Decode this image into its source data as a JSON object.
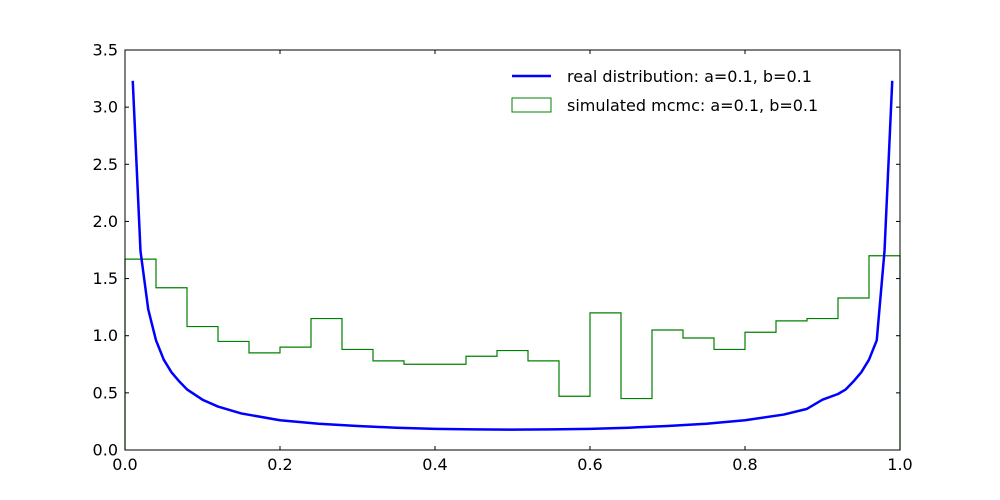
{
  "chart_data": {
    "type": "line",
    "title": "",
    "xlabel": "",
    "ylabel": "",
    "xlim": [
      0.0,
      1.0
    ],
    "ylim": [
      0.0,
      3.5
    ],
    "xticks": [
      "0.0",
      "0.2",
      "0.4",
      "0.6",
      "0.8",
      "1.0"
    ],
    "yticks": [
      "0.0",
      "0.5",
      "1.0",
      "1.5",
      "2.0",
      "2.5",
      "3.0",
      "3.5"
    ],
    "grid": false,
    "legend_position": "top-right",
    "series": [
      {
        "name": "real distribution: a=0.1, b=0.1",
        "kind": "line",
        "color": "#0000ff",
        "x": [
          0.01,
          0.02,
          0.03,
          0.04,
          0.05,
          0.06,
          0.07,
          0.08,
          0.1,
          0.12,
          0.15,
          0.2,
          0.25,
          0.3,
          0.35,
          0.4,
          0.45,
          0.5,
          0.55,
          0.6,
          0.65,
          0.7,
          0.75,
          0.8,
          0.85,
          0.88,
          0.9,
          0.92,
          0.93,
          0.94,
          0.95,
          0.96,
          0.97,
          0.98,
          0.99
        ],
        "y": [
          3.23,
          1.74,
          1.23,
          0.96,
          0.79,
          0.68,
          0.6,
          0.53,
          0.44,
          0.38,
          0.32,
          0.26,
          0.23,
          0.21,
          0.195,
          0.185,
          0.18,
          0.178,
          0.18,
          0.185,
          0.195,
          0.21,
          0.23,
          0.26,
          0.31,
          0.36,
          0.44,
          0.49,
          0.53,
          0.6,
          0.68,
          0.79,
          0.96,
          1.74,
          3.23
        ]
      },
      {
        "name": "simulated mcmc: a=0.1, b=0.1",
        "kind": "histogram",
        "color": "#008000",
        "bin_edges": [
          0.0,
          0.04,
          0.08,
          0.12,
          0.16,
          0.2,
          0.24,
          0.28,
          0.32,
          0.36,
          0.4,
          0.44,
          0.48,
          0.52,
          0.56,
          0.6,
          0.64,
          0.68,
          0.72,
          0.76,
          0.8,
          0.84,
          0.88,
          0.92,
          0.96,
          1.0
        ],
        "values": [
          1.67,
          1.42,
          1.08,
          0.95,
          0.85,
          0.9,
          1.15,
          0.88,
          0.78,
          0.75,
          0.75,
          0.82,
          0.87,
          0.78,
          0.47,
          1.2,
          0.45,
          1.05,
          0.98,
          0.88,
          1.03,
          1.13,
          1.15,
          1.33,
          1.7
        ]
      }
    ]
  }
}
